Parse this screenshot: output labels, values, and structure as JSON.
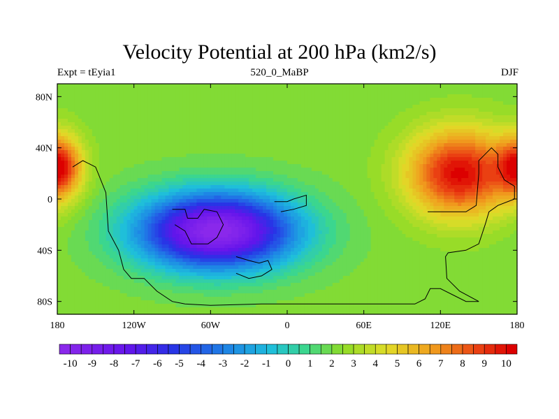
{
  "header": {
    "title": "Velocity Potential at 200 hPa (km2/s)",
    "left_label": "Expt = tEyia1",
    "center_label": "520_0_MaBP",
    "right_label": "DJF"
  },
  "chart_data": {
    "type": "heatmap",
    "title": "Velocity Potential at 200 hPa (km2/s)",
    "xlabel": "",
    "ylabel": "",
    "xlim": [
      -180,
      180
    ],
    "ylim": [
      -90,
      90
    ],
    "x_ticks": [
      -180,
      -120,
      -60,
      0,
      60,
      120,
      180
    ],
    "x_tick_labels": [
      "180",
      "120W",
      "60W",
      "0",
      "60E",
      "120E",
      "180"
    ],
    "y_ticks": [
      80,
      40,
      0,
      -40,
      -80
    ],
    "y_tick_labels": [
      "80N",
      "40N",
      "0",
      "40S",
      "80S"
    ],
    "colorbar": {
      "min": -10.5,
      "max": 10.5,
      "step": 0.5,
      "tick_values": [
        -10,
        -9,
        -8,
        -7,
        -6,
        -5,
        -4,
        -3,
        -2,
        -1,
        0,
        1,
        2,
        3,
        4,
        5,
        6,
        7,
        8,
        9,
        10
      ],
      "tick_labels": [
        "-10",
        "-9",
        "-8",
        "-7",
        "-6",
        "-5",
        "-4",
        "-3",
        "-2",
        "-1",
        "0",
        "1",
        "2",
        "3",
        "4",
        "5",
        "6",
        "7",
        "8",
        "9",
        "10"
      ]
    },
    "field_centers": [
      {
        "name": "low-center",
        "lon": -55,
        "lat": -25,
        "value": -10.5,
        "lon_scale": 58,
        "lat_scale": 28
      },
      {
        "name": "high-center",
        "lon": 135,
        "lat": 20,
        "value": 10.2,
        "lon_scale": 38,
        "lat_scale": 32
      },
      {
        "name": "high-west",
        "lon": -178,
        "lat": 25,
        "value": 8.8,
        "lon_scale": 16,
        "lat_scale": 22
      }
    ],
    "continents": [
      {
        "name": "americas",
        "points": [
          [
            -168,
            25
          ],
          [
            -160,
            30
          ],
          [
            -150,
            25
          ],
          [
            -148,
            20
          ],
          [
            -142,
            5
          ],
          [
            -140,
            -25
          ],
          [
            -132,
            -40
          ],
          [
            -128,
            -55
          ],
          [
            -122,
            -62
          ],
          [
            -112,
            -62
          ],
          [
            -102,
            -72
          ],
          [
            -90,
            -80
          ],
          [
            -80,
            -82
          ],
          [
            -60,
            -83
          ],
          [
            -20,
            -82
          ],
          [
            20,
            -82
          ],
          [
            60,
            -82
          ],
          [
            100,
            -82
          ],
          [
            108,
            -78
          ],
          [
            112,
            -70
          ],
          [
            120,
            -70
          ],
          [
            130,
            -75
          ],
          [
            140,
            -80
          ],
          [
            150,
            -80
          ],
          [
            135,
            -72
          ],
          [
            125,
            -62
          ],
          [
            124,
            -45
          ],
          [
            126,
            -42
          ],
          [
            140,
            -40
          ],
          [
            150,
            -35
          ],
          [
            155,
            -20
          ],
          [
            158,
            -10
          ],
          [
            165,
            -5
          ],
          [
            178,
            0
          ],
          [
            178,
            10
          ],
          [
            170,
            15
          ],
          [
            165,
            25
          ],
          [
            165,
            35
          ],
          [
            160,
            40
          ],
          [
            155,
            35
          ],
          [
            150,
            30
          ],
          [
            150,
            20
          ],
          [
            148,
            -5
          ],
          [
            140,
            -10
          ],
          [
            130,
            -10
          ],
          [
            118,
            -10
          ],
          [
            110,
            -10
          ]
        ]
      },
      {
        "name": "island-a",
        "points": [
          [
            -90,
            -8
          ],
          [
            -80,
            -8
          ],
          [
            -78,
            -15
          ],
          [
            -70,
            -15
          ],
          [
            -65,
            -8
          ],
          [
            -55,
            -10
          ],
          [
            -50,
            -20
          ],
          [
            -55,
            -30
          ],
          [
            -62,
            -35
          ],
          [
            -75,
            -35
          ],
          [
            -80,
            -25
          ],
          [
            -88,
            -20
          ]
        ]
      },
      {
        "name": "island-b",
        "points": [
          [
            -40,
            -45
          ],
          [
            -30,
            -48
          ],
          [
            -22,
            -50
          ],
          [
            -15,
            -48
          ],
          [
            -12,
            -55
          ],
          [
            -20,
            -60
          ],
          [
            -30,
            -62
          ],
          [
            -40,
            -58
          ]
        ]
      },
      {
        "name": "island-c",
        "points": [
          [
            -10,
            -2
          ],
          [
            0,
            -2
          ],
          [
            5,
            0
          ],
          [
            15,
            3
          ],
          [
            15,
            -5
          ],
          [
            5,
            -8
          ],
          [
            -5,
            -10
          ]
        ]
      }
    ]
  }
}
